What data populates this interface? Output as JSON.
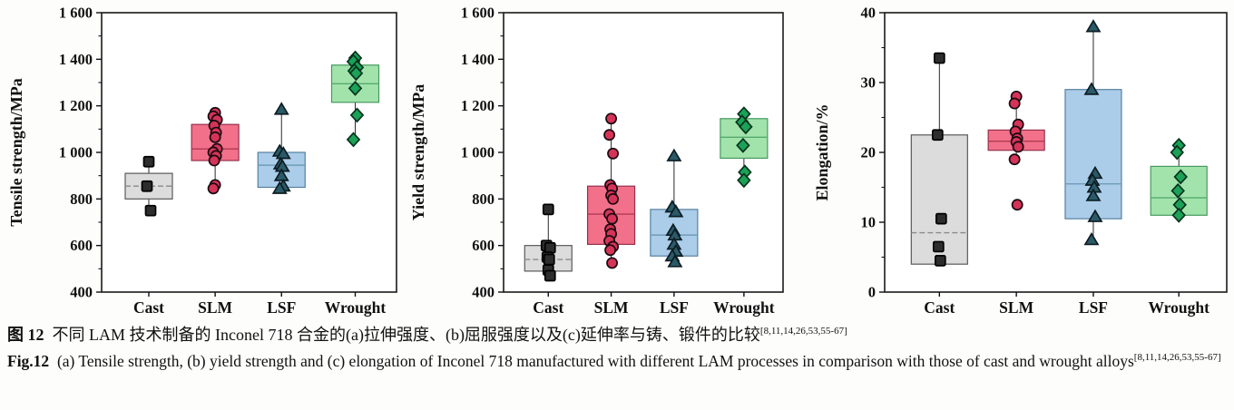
{
  "figure": {
    "caption_cn_label": "图 12",
    "caption_cn_text": "不同 LAM 技术制备的 Inconel 718 合金的(a)拉伸强度、(b)屈服强度以及(c)延伸率与铸、锻件的比较",
    "caption_cn_ref": "[8,11,14,26,53,55-67]",
    "caption_en_label": "Fig.12",
    "caption_en_text": "(a) Tensile strength, (b) yield strength and (c) elongation of Inconel 718 manufactured with different LAM processes in comparison with those of cast and wrought alloys",
    "caption_en_ref": "[8,11,14,26,53,55-67]"
  },
  "palette": {
    "Cast": {
      "box_fill": "#dcdcdc",
      "box_stroke": "#5a5a5a",
      "median_color": "#8a8a8a",
      "median_dash": "6,3",
      "marker": "square",
      "marker_fill": "#2d2d2d",
      "marker_stroke": "#000000"
    },
    "SLM": {
      "box_fill": "#f2708a",
      "box_stroke": "#96304a",
      "median_color": "#b03a56",
      "median_dash": "",
      "marker": "circle",
      "marker_fill": "#d63358",
      "marker_stroke": "#1a0a10"
    },
    "LSF": {
      "box_fill": "#abcde9",
      "box_stroke": "#55809f",
      "median_color": "#6f9cbb",
      "median_dash": "",
      "marker": "triangle",
      "marker_fill": "#2a5a68",
      "marker_stroke": "#0d1c22"
    },
    "Wrought": {
      "box_fill": "#a2e3ac",
      "box_stroke": "#47995f",
      "median_color": "#55aa6d",
      "median_dash": "",
      "marker": "diamond",
      "marker_fill": "#1ba158",
      "marker_stroke": "#06331c"
    }
  },
  "chart_data": [
    {
      "type": "box",
      "panel": "a",
      "title": "",
      "xlabel": "",
      "ylabel": "Tensile strength/MPa",
      "ylim": [
        400,
        1600
      ],
      "grid": false,
      "yticks": [
        {
          "v": 400,
          "label": "400"
        },
        {
          "v": 600,
          "label": "600"
        },
        {
          "v": 800,
          "label": "800"
        },
        {
          "v": 1000,
          "label": "1 000"
        },
        {
          "v": 1200,
          "label": "1 200"
        },
        {
          "v": 1400,
          "label": "1 400"
        },
        {
          "v": 1600,
          "label": "1 600"
        }
      ],
      "categories": [
        "Cast",
        "SLM",
        "LSF",
        "Wrought"
      ],
      "series": [
        {
          "name": "Cast",
          "q1": 800,
          "q3": 910,
          "median": 855,
          "whisker_low": 750,
          "whisker_high": 960,
          "points": [
            960,
            855,
            750
          ]
        },
        {
          "name": "SLM",
          "q1": 965,
          "q3": 1120,
          "median": 1015,
          "whisker_low": 845,
          "whisker_high": 1170,
          "points": [
            1170,
            1155,
            1140,
            1115,
            1085,
            1065,
            1015,
            1000,
            985,
            965,
            860,
            845
          ]
        },
        {
          "name": "LSF",
          "q1": 850,
          "q3": 1000,
          "median": 945,
          "whisker_low": 845,
          "whisker_high": 1185,
          "points": [
            1185,
            1005,
            995,
            950,
            940,
            900,
            855,
            845
          ]
        },
        {
          "name": "Wrought",
          "q1": 1215,
          "q3": 1375,
          "median": 1295,
          "whisker_low": 1055,
          "whisker_high": 1405,
          "points": [
            1405,
            1390,
            1365,
            1350,
            1340,
            1275,
            1160,
            1055
          ]
        }
      ]
    },
    {
      "type": "box",
      "panel": "b",
      "title": "",
      "xlabel": "",
      "ylabel": "Yield strength/MPa",
      "ylim": [
        400,
        1600
      ],
      "grid": false,
      "yticks": [
        {
          "v": 400,
          "label": "400"
        },
        {
          "v": 600,
          "label": "600"
        },
        {
          "v": 800,
          "label": "800"
        },
        {
          "v": 1000,
          "label": "1 000"
        },
        {
          "v": 1200,
          "label": "1 200"
        },
        {
          "v": 1400,
          "label": "1 400"
        },
        {
          "v": 1600,
          "label": "1 600"
        }
      ],
      "categories": [
        "Cast",
        "SLM",
        "LSF",
        "Wrought"
      ],
      "series": [
        {
          "name": "Cast",
          "q1": 490,
          "q3": 600,
          "median": 540,
          "whisker_low": 470,
          "whisker_high": 755,
          "points": [
            755,
            600,
            590,
            550,
            540,
            495,
            470
          ]
        },
        {
          "name": "SLM",
          "q1": 605,
          "q3": 855,
          "median": 735,
          "whisker_low": 525,
          "whisker_high": 1145,
          "points": [
            1145,
            1075,
            995,
            860,
            845,
            815,
            800,
            735,
            715,
            670,
            650,
            620,
            595,
            580,
            525
          ]
        },
        {
          "name": "LSF",
          "q1": 555,
          "q3": 755,
          "median": 645,
          "whisker_low": 530,
          "whisker_high": 985,
          "points": [
            985,
            765,
            745,
            665,
            645,
            605,
            575,
            555,
            530
          ]
        },
        {
          "name": "Wrought",
          "q1": 975,
          "q3": 1145,
          "median": 1065,
          "whisker_low": 880,
          "whisker_high": 1165,
          "points": [
            1165,
            1130,
            1110,
            1030,
            915,
            880
          ]
        }
      ]
    },
    {
      "type": "box",
      "panel": "c",
      "title": "",
      "xlabel": "",
      "ylabel": "Elongation/%",
      "ylim": [
        0,
        40
      ],
      "grid": false,
      "yticks": [
        {
          "v": 0,
          "label": "0"
        },
        {
          "v": 10,
          "label": "10"
        },
        {
          "v": 20,
          "label": "20"
        },
        {
          "v": 30,
          "label": "30"
        },
        {
          "v": 40,
          "label": "40"
        }
      ],
      "categories": [
        "Cast",
        "SLM",
        "LSF",
        "Wrought"
      ],
      "series": [
        {
          "name": "Cast",
          "q1": 4,
          "q3": 22.5,
          "median": 8.5,
          "whisker_low": 4,
          "whisker_high": 33.5,
          "points": [
            33.5,
            22.5,
            10.5,
            6.5,
            4.5
          ]
        },
        {
          "name": "SLM",
          "q1": 20.3,
          "q3": 23.2,
          "median": 21.6,
          "whisker_low": 19,
          "whisker_high": 28,
          "points": [
            28,
            27,
            24,
            23,
            22,
            21.5,
            20.8,
            19,
            12.5
          ]
        },
        {
          "name": "LSF",
          "q1": 10.5,
          "q3": 29,
          "median": 15.5,
          "whisker_low": 7.5,
          "whisker_high": 38,
          "points": [
            38,
            29,
            17,
            16,
            15,
            13.8,
            10.8,
            7.5
          ]
        },
        {
          "name": "Wrought",
          "q1": 11,
          "q3": 18,
          "median": 13.5,
          "whisker_low": 11,
          "whisker_high": 21,
          "points": [
            21,
            20,
            16.5,
            14.5,
            12.5,
            11
          ]
        }
      ]
    }
  ]
}
